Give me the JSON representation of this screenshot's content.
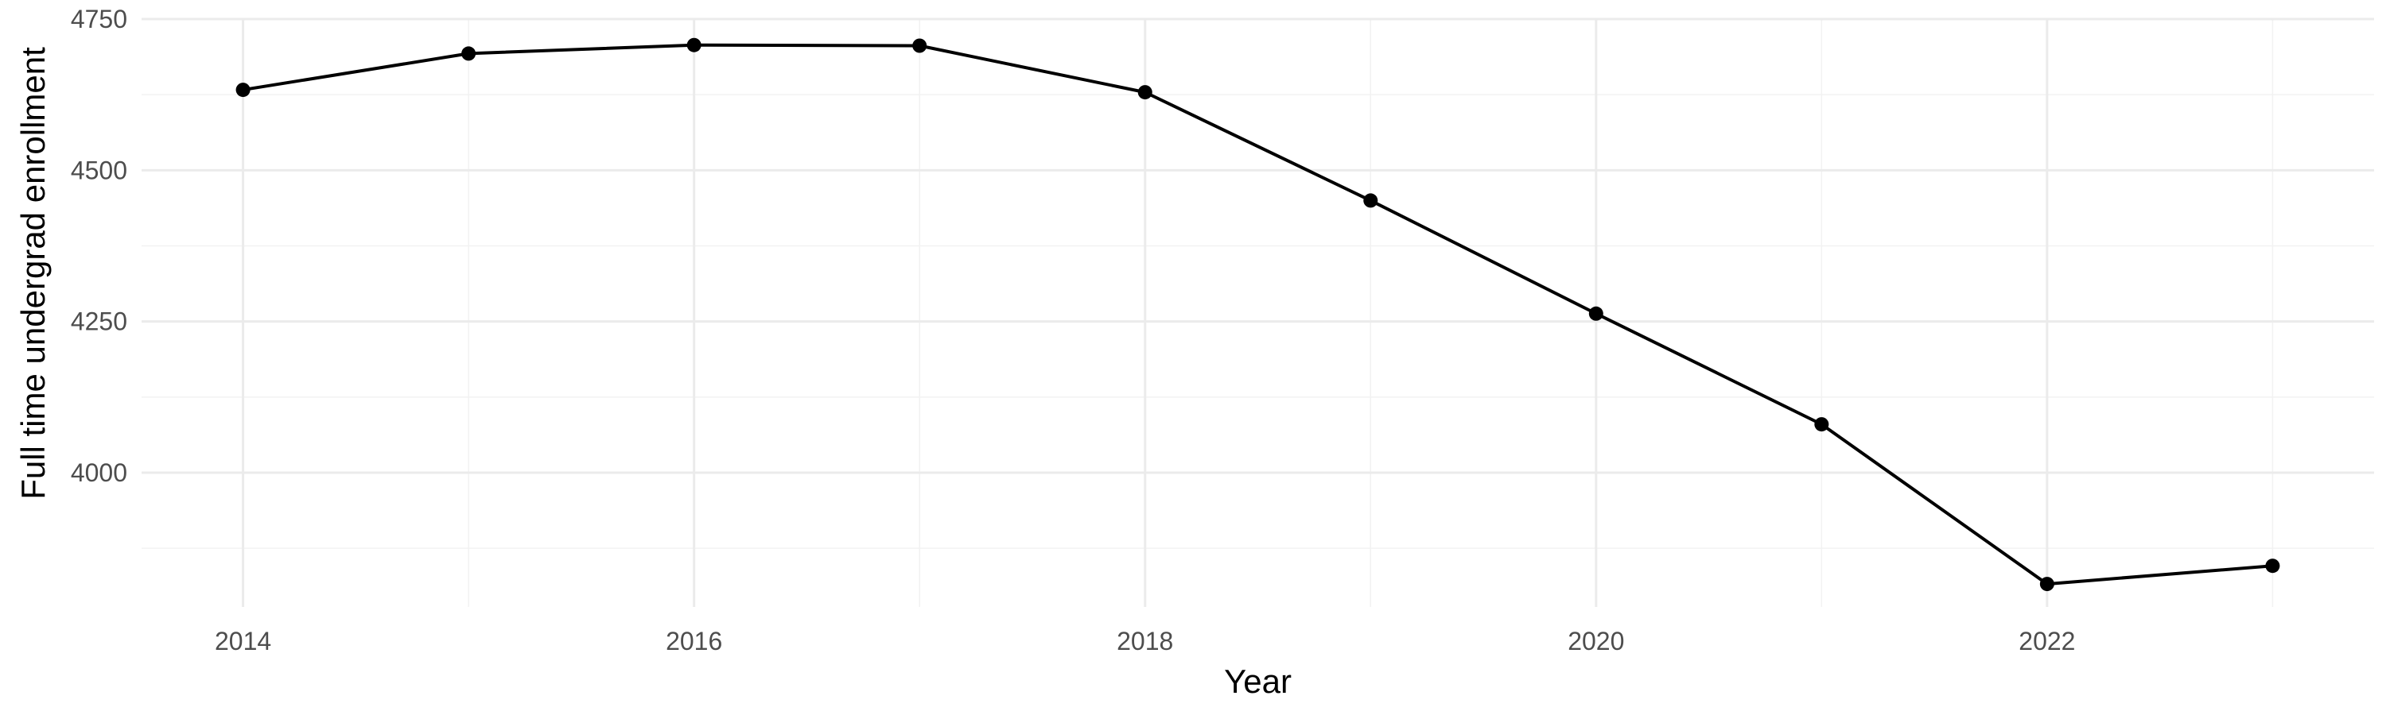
{
  "chart_data": {
    "type": "line",
    "xlabel": "Year",
    "ylabel": "Full time undergrad enrollment",
    "x": [
      2014,
      2015,
      2016,
      2017,
      2018,
      2019,
      2020,
      2021,
      2022,
      2023
    ],
    "series": [
      {
        "values": [
          4633,
          4693,
          4707,
          4706,
          4629,
          4450,
          4263,
          4080,
          3816,
          3846
        ]
      }
    ],
    "xlim": [
      2013.55,
      2023.45
    ],
    "ylim": [
      3778,
      4750
    ],
    "x_ticks": [
      2014,
      2016,
      2018,
      2020,
      2022
    ],
    "x_minor_ticks": [
      2015,
      2017,
      2019,
      2021,
      2023
    ],
    "y_ticks": [
      4000,
      4250,
      4500,
      4750
    ],
    "y_minor_ticks": [
      3875,
      4125,
      4375,
      4625
    ],
    "x_tick_labels": [
      "2014",
      "2016",
      "2018",
      "2020",
      "2022"
    ],
    "y_tick_labels": [
      "4000",
      "4250",
      "4500",
      "4750"
    ],
    "grid": true,
    "legend": "none",
    "colors": {
      "line": "#000000",
      "point": "#000000",
      "grid_major": "#ebebeb",
      "grid_minor": "#f2f2f2"
    }
  }
}
